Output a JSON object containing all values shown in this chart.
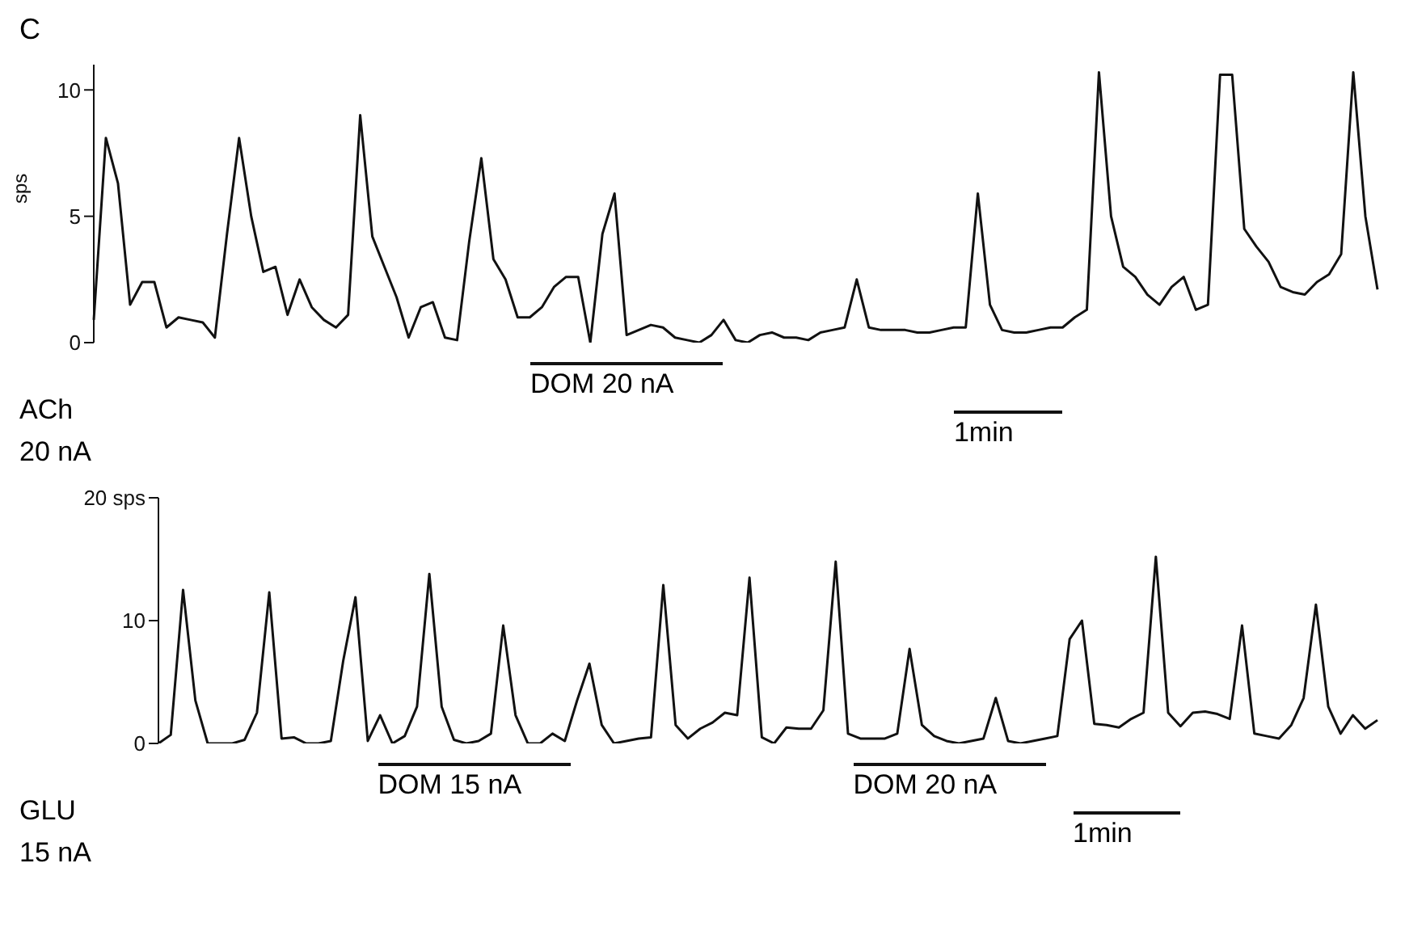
{
  "chart_data": [
    {
      "type": "line",
      "title": "C",
      "ylabel": "sps",
      "color": "#111111",
      "marker": "none",
      "tick_labels": "y",
      "ylim": [
        0,
        11
      ],
      "yticks": [
        0,
        5,
        10
      ],
      "categories": [
        null,
        null,
        null,
        null,
        null,
        null,
        null,
        null,
        null,
        null,
        null,
        null,
        null,
        null,
        null,
        null,
        null,
        null,
        null,
        null,
        null,
        null,
        null,
        null,
        null,
        null,
        null,
        null,
        null,
        null,
        null,
        null,
        null,
        null,
        null,
        null,
        null,
        null,
        null,
        null,
        null,
        null,
        null,
        null,
        null,
        null,
        null,
        null,
        null,
        null,
        null,
        null,
        null,
        null,
        null,
        null,
        null,
        null,
        null,
        null,
        null,
        null,
        null,
        null,
        null,
        null,
        null,
        null,
        null,
        null,
        null,
        null,
        null,
        null,
        null,
        null,
        null,
        null,
        null,
        null,
        null,
        null,
        null,
        null,
        null,
        null,
        null,
        null,
        null,
        null,
        null,
        null,
        null,
        null,
        null,
        null,
        null,
        null,
        null,
        null,
        null,
        null,
        null,
        null,
        null,
        null,
        null
      ],
      "values": [
        0.9,
        8.1,
        6.3,
        1.5,
        2.4,
        2.4,
        0.6,
        1.0,
        0.9,
        0.8,
        0.2,
        4.3,
        8.1,
        5.0,
        2.8,
        3.0,
        1.1,
        2.5,
        1.4,
        0.9,
        0.6,
        1.1,
        9.0,
        4.2,
        3.0,
        1.8,
        0.2,
        1.4,
        1.6,
        0.2,
        0.1,
        4.0,
        7.3,
        3.3,
        2.5,
        1.0,
        1.0,
        1.4,
        2.2,
        2.6,
        2.6,
        0.0,
        4.3,
        5.9,
        0.3,
        0.5,
        0.7,
        0.6,
        0.2,
        0.1,
        0.0,
        0.3,
        0.9,
        0.1,
        0.0,
        0.3,
        0.4,
        0.2,
        0.2,
        0.1,
        0.4,
        0.5,
        0.6,
        2.5,
        0.6,
        0.5,
        0.5,
        0.5,
        0.4,
        0.4,
        0.5,
        0.6,
        0.6,
        5.9,
        1.5,
        0.5,
        0.4,
        0.4,
        0.5,
        0.6,
        0.6,
        1.0,
        1.3,
        10.7,
        5.0,
        3.0,
        2.6,
        1.9,
        1.5,
        2.2,
        2.6,
        1.3,
        1.5,
        10.6,
        10.6,
        4.5,
        3.8,
        3.2,
        2.2,
        2.0,
        1.9,
        2.4,
        2.7,
        3.5,
        10.7,
        5.0,
        2.1
      ],
      "annotations": [
        "DOM 20 nA",
        "ACh",
        "20 nA",
        "1min"
      ]
    },
    {
      "type": "line",
      "color": "#111111",
      "marker": "none",
      "tick_labels": "y",
      "ylim": [
        0,
        20
      ],
      "yticks": [
        0,
        10,
        {
          "value": 20,
          "label": "20 sps"
        }
      ],
      "categories": [
        null,
        null,
        null,
        null,
        null,
        null,
        null,
        null,
        null,
        null,
        null,
        null,
        null,
        null,
        null,
        null,
        null,
        null,
        null,
        null,
        null,
        null,
        null,
        null,
        null,
        null,
        null,
        null,
        null,
        null,
        null,
        null,
        null,
        null,
        null,
        null,
        null,
        null,
        null,
        null,
        null,
        null,
        null,
        null,
        null,
        null,
        null,
        null,
        null,
        null,
        null,
        null,
        null,
        null,
        null,
        null,
        null,
        null,
        null,
        null,
        null,
        null,
        null,
        null,
        null,
        null,
        null,
        null,
        null,
        null,
        null,
        null,
        null,
        null,
        null,
        null,
        null,
        null,
        null,
        null,
        null,
        null,
        null,
        null,
        null,
        null,
        null,
        null,
        null,
        null,
        null,
        null,
        null,
        null,
        null,
        null,
        null,
        null,
        null,
        null
      ],
      "values": [
        0.0,
        0.7,
        12.5,
        3.5,
        0.0,
        0.0,
        0.0,
        0.3,
        2.5,
        12.3,
        0.4,
        0.5,
        0.0,
        0.0,
        0.2,
        6.7,
        11.9,
        0.2,
        2.3,
        0.0,
        0.6,
        3.0,
        13.8,
        3.0,
        0.3,
        0.0,
        0.2,
        0.8,
        9.6,
        2.3,
        0.0,
        0.0,
        0.8,
        0.2,
        3.5,
        6.5,
        1.5,
        0.0,
        0.2,
        0.4,
        0.5,
        12.9,
        1.5,
        0.4,
        1.2,
        1.7,
        2.5,
        2.3,
        13.5,
        0.5,
        0.0,
        1.3,
        1.2,
        1.2,
        2.7,
        14.8,
        0.8,
        0.4,
        0.4,
        0.4,
        0.8,
        7.7,
        1.5,
        0.6,
        0.2,
        0.0,
        0.2,
        0.4,
        3.7,
        0.2,
        0.0,
        0.2,
        0.4,
        0.6,
        8.5,
        10.0,
        1.6,
        1.5,
        1.3,
        2.0,
        2.5,
        15.2,
        2.5,
        1.4,
        2.5,
        2.6,
        2.4,
        2.0,
        9.6,
        0.8,
        0.6,
        0.4,
        1.5,
        3.7,
        11.3,
        3.0,
        0.8,
        2.3,
        1.2,
        1.9
      ],
      "annotations": [
        "DOM 15 nA",
        "DOM 20 nA",
        "GLU",
        "15 nA",
        "1min"
      ]
    }
  ]
}
